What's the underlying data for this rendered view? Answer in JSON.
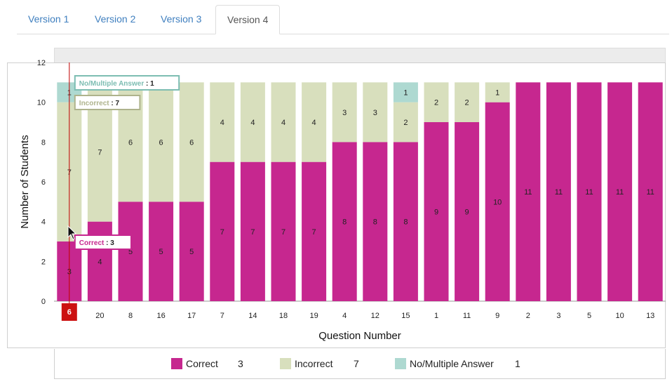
{
  "tabs": [
    {
      "label": "Version 1",
      "active": false
    },
    {
      "label": "Version 2",
      "active": false
    },
    {
      "label": "Version 3",
      "active": false
    },
    {
      "label": "Version 4",
      "active": true
    }
  ],
  "colors": {
    "correct": "#c6278f",
    "incorrect": "#d8dfbd",
    "no_answer": "#aed9d1",
    "cursor_line": "#c00000"
  },
  "chart_data": {
    "type": "bar",
    "stacked": true,
    "xlabel": "Question Number",
    "ylabel": "Number of Students",
    "ylim": [
      0,
      12
    ],
    "yticks": [
      0,
      2,
      4,
      6,
      8,
      10,
      12
    ],
    "categories": [
      "6",
      "20",
      "8",
      "16",
      "17",
      "7",
      "14",
      "18",
      "19",
      "4",
      "12",
      "15",
      "1",
      "11",
      "9",
      "2",
      "3",
      "5",
      "10",
      "13"
    ],
    "series": [
      {
        "name": "Correct",
        "values": [
          3,
          4,
          5,
          5,
          5,
          7,
          7,
          7,
          7,
          8,
          8,
          8,
          9,
          9,
          10,
          11,
          11,
          11,
          11,
          11
        ]
      },
      {
        "name": "Incorrect",
        "values": [
          7,
          7,
          6,
          6,
          6,
          4,
          4,
          4,
          4,
          3,
          3,
          2,
          2,
          2,
          1,
          0,
          0,
          0,
          0,
          0
        ]
      },
      {
        "name": "No/Multiple Answer",
        "values": [
          1,
          0,
          0,
          0,
          0,
          0,
          0,
          0,
          0,
          0,
          0,
          1,
          0,
          0,
          0,
          0,
          0,
          0,
          0,
          0
        ]
      }
    ],
    "highlighted_category": "6",
    "tooltips": [
      {
        "series": "No/Multiple Answer",
        "value": 1
      },
      {
        "series": "Incorrect",
        "value": 7
      },
      {
        "series": "Correct",
        "value": 3
      }
    ]
  },
  "legend": [
    {
      "label": "Correct",
      "value": "3"
    },
    {
      "label": "Incorrect",
      "value": "7"
    },
    {
      "label": "No/Multiple Answer",
      "value": "1"
    }
  ]
}
